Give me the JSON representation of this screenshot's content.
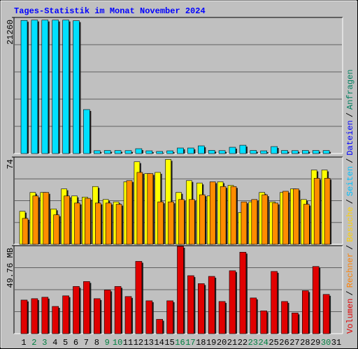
{
  "chart_data": [
    {
      "type": "bar",
      "title": "Tages-Statistik im Monat November 2024",
      "ylim": [
        0,
        21260
      ],
      "yticks": [
        21260
      ],
      "grid": true,
      "series": [
        {
          "color": "#00e0ff",
          "values": [
            20800,
            20850,
            20850,
            20850,
            20850,
            20750,
            6870,
            450,
            480,
            470,
            460,
            760,
            430,
            330,
            430,
            870,
            870,
            1200,
            500,
            460,
            980,
            1300,
            480,
            430,
            1090,
            480,
            460,
            480,
            480,
            470,
            null
          ]
        }
      ]
    },
    {
      "type": "bar",
      "ylim": [
        0,
        74
      ],
      "yticks": [
        74
      ],
      "grid": true,
      "series": [
        {
          "color": "#ffff00",
          "values": [
            28,
            44,
            44,
            30,
            47,
            41,
            40,
            49,
            38,
            36,
            53,
            70,
            60,
            61,
            72,
            44,
            54,
            52,
            41,
            53,
            50,
            27,
            36,
            44,
            36,
            44,
            47,
            38,
            63,
            63,
            null
          ]
        },
        {
          "color": "#ff8c00",
          "values": [
            22,
            41,
            44,
            25,
            41,
            35,
            39,
            35,
            35,
            34,
            54,
            61,
            60,
            36,
            36,
            38,
            38,
            42,
            53,
            49,
            49,
            36,
            38,
            42,
            35,
            45,
            47,
            34,
            56,
            56,
            null
          ]
        }
      ]
    },
    {
      "type": "bar",
      "ylim": [
        0,
        49.76
      ],
      "yticks": [
        {
          "value": 49.76,
          "label": "49.76 MB"
        }
      ],
      "grid": true,
      "categories": [
        "1",
        "2",
        "3",
        "4",
        "5",
        "6",
        "7",
        "8",
        "9",
        "10",
        "11",
        "12",
        "13",
        "14",
        "15",
        "16",
        "17",
        "18",
        "19",
        "20",
        "21",
        "22",
        "23",
        "24",
        "25",
        "26",
        "27",
        "28",
        "29",
        "30",
        "31"
      ],
      "category_colors": [
        "#000000",
        "#008040",
        "#008040",
        "#000000",
        "#000000",
        "#000000",
        "#000000",
        "#000000",
        "#008040",
        "#008040",
        "#000000",
        "#000000",
        "#000000",
        "#000000",
        "#000000",
        "#008040",
        "#008040",
        "#000000",
        "#000000",
        "#000000",
        "#000000",
        "#000000",
        "#008040",
        "#008040",
        "#000000",
        "#000000",
        "#000000",
        "#000000",
        "#000000",
        "#008040",
        "#000000"
      ],
      "series": [
        {
          "color": "#e00000",
          "values": [
            19.0,
            19.8,
            20.6,
            15.4,
            21.4,
            26.7,
            29.5,
            19.8,
            24.7,
            26.7,
            21.0,
            40.9,
            18.6,
            8.1,
            18.6,
            49.4,
            32.8,
            28.3,
            32.4,
            18.2,
            35.6,
            46.1,
            20.2,
            12.9,
            35.2,
            18.2,
            11.7,
            24.3,
            38.0,
            22.2,
            null
          ]
        }
      ]
    }
  ],
  "legend": {
    "separator": "/",
    "items": [
      {
        "text": "Volumen",
        "color": "#e00000"
      },
      {
        "text": "Rechner",
        "color": "#ff8000"
      },
      {
        "text": "Besuche",
        "color": "#ffd000"
      },
      {
        "text": "Seiten",
        "color": "#00c0ff"
      },
      {
        "text": "Dateien",
        "color": "#0000ff"
      },
      {
        "text": "Anfragen",
        "color": "#008060"
      }
    ]
  }
}
